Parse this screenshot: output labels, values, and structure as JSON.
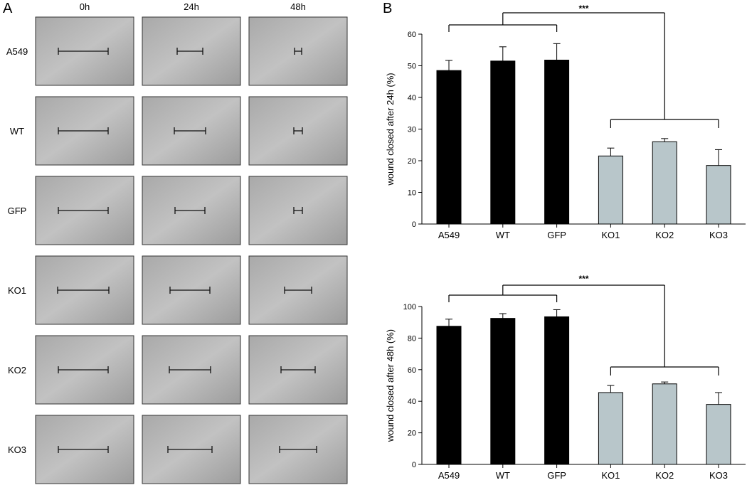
{
  "panel_a": {
    "label": "A",
    "columns": [
      "0h",
      "24h",
      "48h"
    ],
    "rows": [
      "A549",
      "WT",
      "GFP",
      "KO1",
      "KO2",
      "KO3"
    ]
  },
  "panel_b": {
    "label": "B"
  },
  "chart_data": [
    {
      "type": "bar",
      "ylabel": "wound closed after 24h (%)",
      "categories": [
        "A549",
        "WT",
        "GFP",
        "KO1",
        "KO2",
        "KO3"
      ],
      "values": [
        48.5,
        51.5,
        51.8,
        21.5,
        26,
        18.5
      ],
      "errors": [
        3.2,
        4.5,
        5.2,
        2.5,
        1.0,
        5.0
      ],
      "colors": [
        "#000000",
        "#000000",
        "#000000",
        "#b8c6ca",
        "#b8c6ca",
        "#b8c6ca"
      ],
      "ylim": [
        0,
        60
      ],
      "yticks": [
        0,
        10,
        20,
        30,
        40,
        50,
        60
      ],
      "annotation": "***"
    },
    {
      "type": "bar",
      "ylabel": "wound closed after 48h (%)",
      "categories": [
        "A549",
        "WT",
        "GFP",
        "KO1",
        "KO2",
        "KO3"
      ],
      "values": [
        87.5,
        92.5,
        93.5,
        45.5,
        51,
        38
      ],
      "errors": [
        4.5,
        3.0,
        4.5,
        4.5,
        1.2,
        7.5
      ],
      "colors": [
        "#000000",
        "#000000",
        "#000000",
        "#b8c6ca",
        "#b8c6ca",
        "#b8c6ca"
      ],
      "ylim": [
        0,
        100
      ],
      "yticks": [
        0,
        20,
        40,
        60,
        80,
        100
      ],
      "annotation": "***"
    }
  ]
}
